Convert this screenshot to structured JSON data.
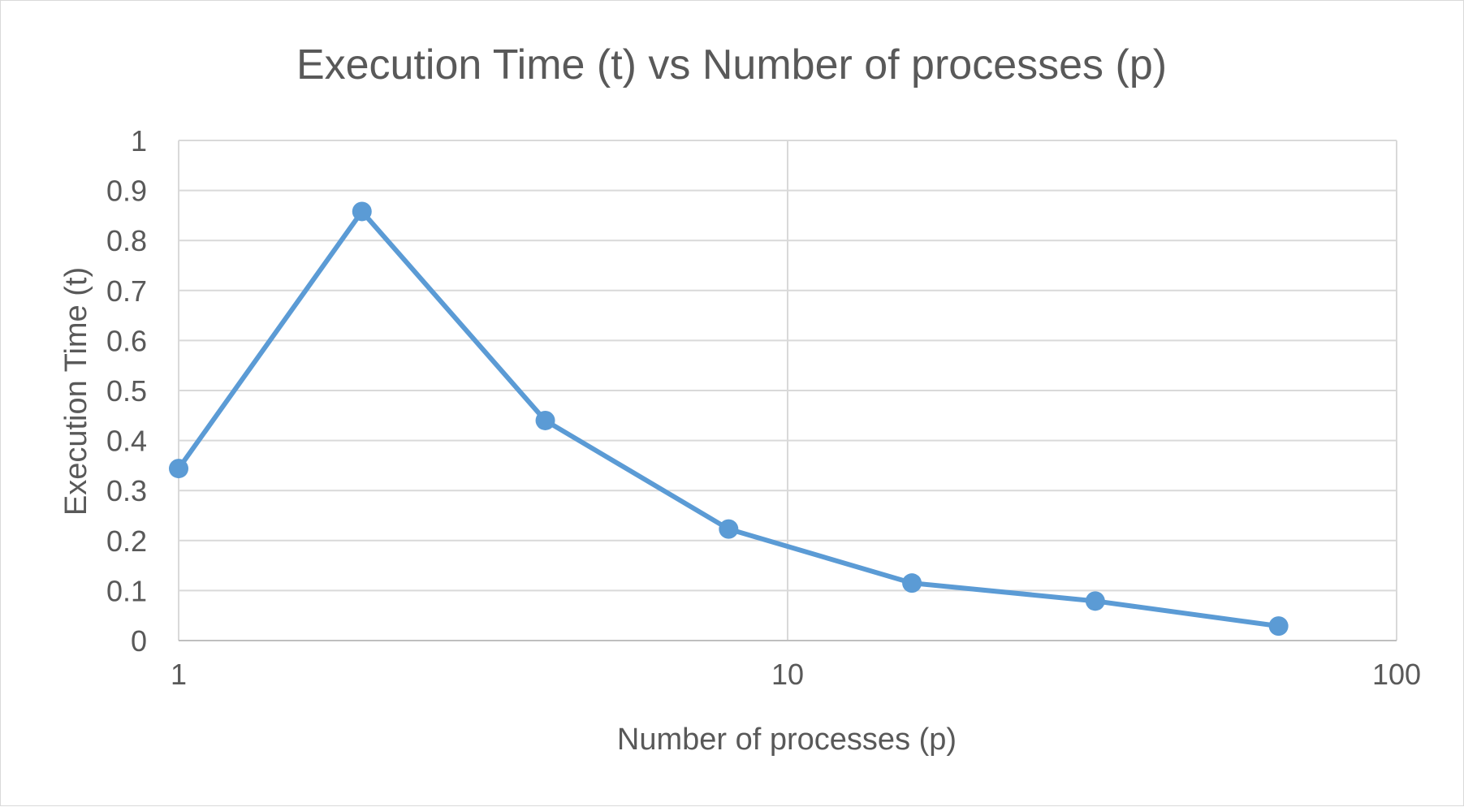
{
  "chart_data": {
    "type": "line",
    "title": "Execution Time (t) vs Number of processes (p)",
    "xlabel": "Number of processes (p)",
    "ylabel": "Execution Time (t)",
    "x_scale": "log",
    "xlim": [
      1,
      100
    ],
    "ylim": [
      0,
      1
    ],
    "x_ticks": [
      1,
      10,
      100
    ],
    "x_tick_labels": [
      "1",
      "10",
      "100"
    ],
    "y_ticks": [
      0,
      0.1,
      0.2,
      0.3,
      0.4,
      0.5,
      0.6,
      0.7,
      0.8,
      0.9,
      1
    ],
    "y_tick_labels": [
      "0",
      "0.1",
      "0.2",
      "0.3",
      "0.4",
      "0.5",
      "0.6",
      "0.7",
      "0.8",
      "0.9",
      "1"
    ],
    "grid": true,
    "legend": "none",
    "series": [
      {
        "color": "#5B9BD5",
        "x": [
          1,
          2,
          4,
          8,
          16,
          32,
          64
        ],
        "y": [
          0.344,
          0.858,
          0.44,
          0.223,
          0.115,
          0.079,
          0.029
        ]
      }
    ]
  }
}
